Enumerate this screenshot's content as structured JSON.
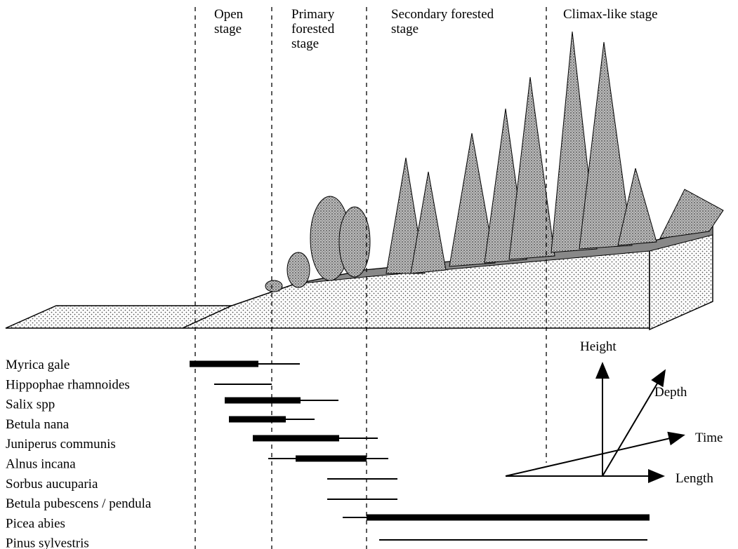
{
  "stages": [
    "Open stage",
    "Primary forested stage",
    "Secondary forested stage",
    "Climax-like stage"
  ],
  "stage_lines": [
    [
      "Open",
      "stage"
    ],
    [
      "Primary",
      "forested",
      "stage"
    ],
    [
      "Secondary forested",
      "stage"
    ],
    [
      "Climax-like stage"
    ]
  ],
  "species": [
    "Myrica gale",
    "Hippophae rhamnoides",
    "Salix spp",
    "Betula nana",
    "Juniperus communis",
    "Alnus incana",
    "Sorbus aucuparia",
    "Betula pubescens / pendula",
    "Picea abies",
    "Pinus sylvestris"
  ],
  "axes": {
    "height": "Height",
    "depth": "Depth",
    "time": "Time",
    "length": "Length"
  }
}
